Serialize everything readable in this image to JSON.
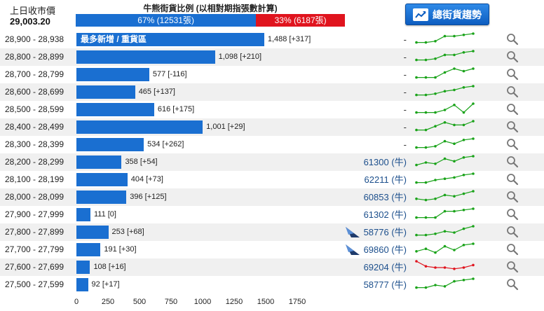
{
  "header": {
    "prev_close_label": "上日收市價",
    "prev_close_value": "29,003.20",
    "ratio_title": "牛熊街貨比例 (以相對期指張數計算)",
    "bull_label": "67% (12531張)",
    "bear_label": "33% (6187張)",
    "bull_percent": 67,
    "bear_percent": 33,
    "trend_button_label": "總街貨趨勢"
  },
  "colors": {
    "bull": "#1a6fd1",
    "bear": "#e0141e",
    "spark_up": "#1aa31a",
    "spark_down": "#e0141e"
  },
  "chart_data": {
    "type": "bar",
    "orientation": "horizontal",
    "xlim": [
      0,
      1750
    ],
    "xticks": [
      0,
      250,
      500,
      750,
      1000,
      1250,
      1500,
      1750
    ],
    "grid": false,
    "highlight_label": "最多新增 / 重貨區",
    "rows": [
      {
        "range": "28,900 - 28,938",
        "value": 1488,
        "label": "1,488 [+317]",
        "code": "-",
        "issuer": false,
        "spark_color": "up",
        "spark": [
          3,
          3,
          4,
          8,
          8,
          9,
          10
        ]
      },
      {
        "range": "28,800 - 28,899",
        "value": 1098,
        "label": "1,098 [+210]",
        "code": "-",
        "issuer": false,
        "spark_color": "up",
        "spark": [
          3,
          3,
          4,
          7,
          7,
          9,
          10
        ]
      },
      {
        "range": "28,700 - 28,799",
        "value": 577,
        "label": "577 [-116]",
        "code": "-",
        "issuer": false,
        "spark_color": "up",
        "spark": [
          3,
          3,
          3,
          7,
          10,
          8,
          10
        ]
      },
      {
        "range": "28,600 - 28,699",
        "value": 465,
        "label": "465 [+137]",
        "code": "-",
        "issuer": false,
        "spark_color": "up",
        "spark": [
          3,
          3,
          4,
          6,
          7,
          9,
          10
        ]
      },
      {
        "range": "28,500 - 28,599",
        "value": 616,
        "label": "616 [+175]",
        "code": "-",
        "issuer": false,
        "spark_color": "up",
        "spark": [
          3,
          3,
          3,
          5,
          9,
          3,
          10
        ]
      },
      {
        "range": "28,400 - 28,499",
        "value": 1001,
        "label": "1,001 [+29]",
        "code": "-",
        "issuer": false,
        "spark_color": "up",
        "spark": [
          3,
          3,
          6,
          9,
          7,
          7,
          10
        ]
      },
      {
        "range": "28,300 - 28,399",
        "value": 534,
        "label": "534 [+262]",
        "code": "-",
        "issuer": false,
        "spark_color": "up",
        "spark": [
          3,
          3,
          4,
          8,
          6,
          9,
          10
        ]
      },
      {
        "range": "28,200 - 28,299",
        "value": 358,
        "label": "358 [+54]",
        "code": "61300 (牛)",
        "issuer": false,
        "spark_color": "up",
        "spark": [
          3,
          5,
          4,
          8,
          6,
          9,
          10
        ]
      },
      {
        "range": "28,100 - 28,199",
        "value": 404,
        "label": "404 [+73]",
        "code": "62211 (牛)",
        "issuer": false,
        "spark_color": "up",
        "spark": [
          3,
          3,
          5,
          6,
          7,
          9,
          10
        ]
      },
      {
        "range": "28,000 - 28,099",
        "value": 396,
        "label": "396 [+125]",
        "code": "60853 (牛)",
        "issuer": false,
        "spark_color": "up",
        "spark": [
          4,
          3,
          4,
          7,
          6,
          8,
          10
        ]
      },
      {
        "range": "27,900 - 27,999",
        "value": 111,
        "label": "111 [0]",
        "code": "61302 (牛)",
        "issuer": false,
        "spark_color": "up",
        "spark": [
          3,
          3,
          3,
          8,
          8,
          9,
          10
        ]
      },
      {
        "range": "27,800 - 27,899",
        "value": 253,
        "label": "253 [+68]",
        "code": "58776 (牛)",
        "issuer": true,
        "spark_color": "up",
        "spark": [
          3,
          3,
          4,
          6,
          5,
          8,
          10
        ]
      },
      {
        "range": "27,700 - 27,799",
        "value": 191,
        "label": "191 [+30]",
        "code": "69860 (牛)",
        "issuer": true,
        "spark_color": "up",
        "spark": [
          4,
          6,
          3,
          8,
          5,
          9,
          10
        ]
      },
      {
        "range": "27,600 - 27,699",
        "value": 108,
        "label": "108 [+16]",
        "code": "69204 (牛)",
        "issuer": false,
        "spark_color": "down",
        "spark": [
          10,
          6,
          5,
          5,
          4,
          5,
          7
        ]
      },
      {
        "range": "27,500 - 27,599",
        "value": 92,
        "label": "92 [+17]",
        "code": "58777 (牛)",
        "issuer": false,
        "spark_color": "up",
        "spark": [
          3,
          3,
          5,
          4,
          8,
          9,
          10
        ]
      }
    ]
  }
}
